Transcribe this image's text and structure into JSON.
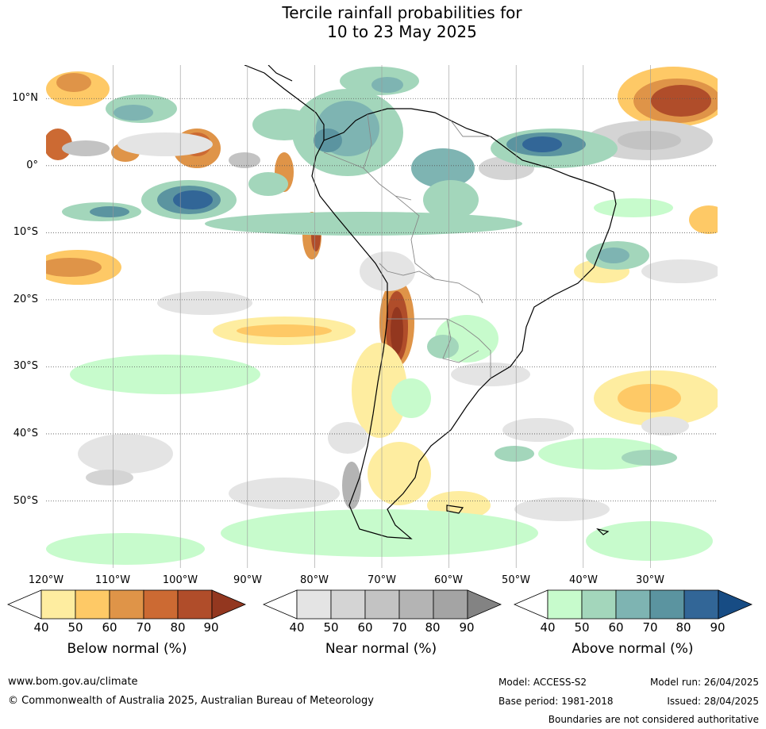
{
  "title": {
    "line1": "Tercile rainfall probabilities for",
    "line2": "10 to 23 May 2025"
  },
  "map": {
    "lat_labels": [
      "10°N",
      "0°",
      "10°S",
      "20°S",
      "30°S",
      "40°S",
      "50°S"
    ],
    "lon_labels": [
      "120°W",
      "110°W",
      "100°W",
      "90°W",
      "80°W",
      "70°W",
      "60°W",
      "50°W",
      "40°W",
      "30°W"
    ],
    "lat_range": [
      -60,
      15
    ],
    "lon_range": [
      -120,
      -20
    ]
  },
  "legends": {
    "below": {
      "title": "Below normal (%)",
      "ticks": [
        "40",
        "50",
        "60",
        "70",
        "80",
        "90"
      ],
      "colors": [
        "#ffffff",
        "#feeda0",
        "#fec966",
        "#df9448",
        "#cc6a33",
        "#b04d2a",
        "#93371f"
      ]
    },
    "near": {
      "title": "Near normal (%)",
      "ticks": [
        "40",
        "50",
        "60",
        "70",
        "80",
        "90"
      ],
      "colors": [
        "#ffffff",
        "#e4e4e4",
        "#d4d4d4",
        "#c3c3c3",
        "#b4b4b4",
        "#a4a4a4",
        "#838383"
      ]
    },
    "above": {
      "title": "Above normal (%)",
      "ticks": [
        "40",
        "50",
        "60",
        "70",
        "80",
        "90"
      ],
      "colors": [
        "#ffffff",
        "#c7fbcc",
        "#a3d6bb",
        "#7eb4b2",
        "#5b94a0",
        "#326697",
        "#174c84"
      ]
    }
  },
  "footer": {
    "url": "www.bom.gov.au/climate",
    "copyright": "© Commonwealth of Australia 2025, Australian Bureau of Meteorology",
    "model": "Model: ACCESS-S2",
    "base_period": "Base period: 1981-2018",
    "model_run": "Model run: 26/04/2025",
    "issued": "Issued: 28/04/2025",
    "disclaimer": "Boundaries are not considered authoritative"
  }
}
